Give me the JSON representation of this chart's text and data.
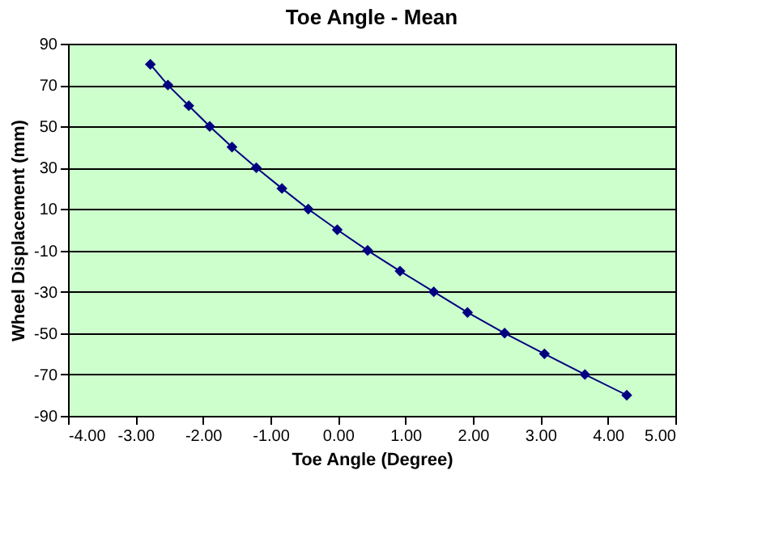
{
  "chart_data": {
    "type": "line",
    "title": "Toe Angle - Mean",
    "xlabel": "Toe Angle (Degree)",
    "ylabel": "Wheel Displacement (mm)",
    "x": [
      -2.78,
      -2.52,
      -2.21,
      -1.9,
      -1.57,
      -1.21,
      -0.83,
      -0.44,
      -0.01,
      0.44,
      0.92,
      1.42,
      1.92,
      2.47,
      3.06,
      3.66,
      4.28
    ],
    "series": [
      {
        "color": "#000080",
        "values": [
          80,
          70,
          60,
          50,
          40,
          30,
          20,
          10,
          0,
          -10,
          -20,
          -30,
          -40,
          -50,
          -60,
          -70,
          -80
        ]
      }
    ],
    "xlim": [
      -4,
      5
    ],
    "xticks": [
      {
        "value": -4,
        "label": "-4.00"
      },
      {
        "value": -3,
        "label": "-3.00"
      },
      {
        "value": -2,
        "label": "-2.00"
      },
      {
        "value": -1,
        "label": "-1.00"
      },
      {
        "value": 0,
        "label": "0.00"
      },
      {
        "value": 1,
        "label": "1.00"
      },
      {
        "value": 2,
        "label": "2.00"
      },
      {
        "value": 3,
        "label": "3.00"
      },
      {
        "value": 4,
        "label": "4.00"
      },
      {
        "value": 5,
        "label": "5.00"
      }
    ],
    "ylim": [
      -90,
      90
    ],
    "yticks": [
      -90,
      -70,
      -50,
      -30,
      -10,
      10,
      30,
      50,
      70,
      90
    ],
    "grid": "y",
    "marker": "diamond",
    "line_style": "solid"
  }
}
